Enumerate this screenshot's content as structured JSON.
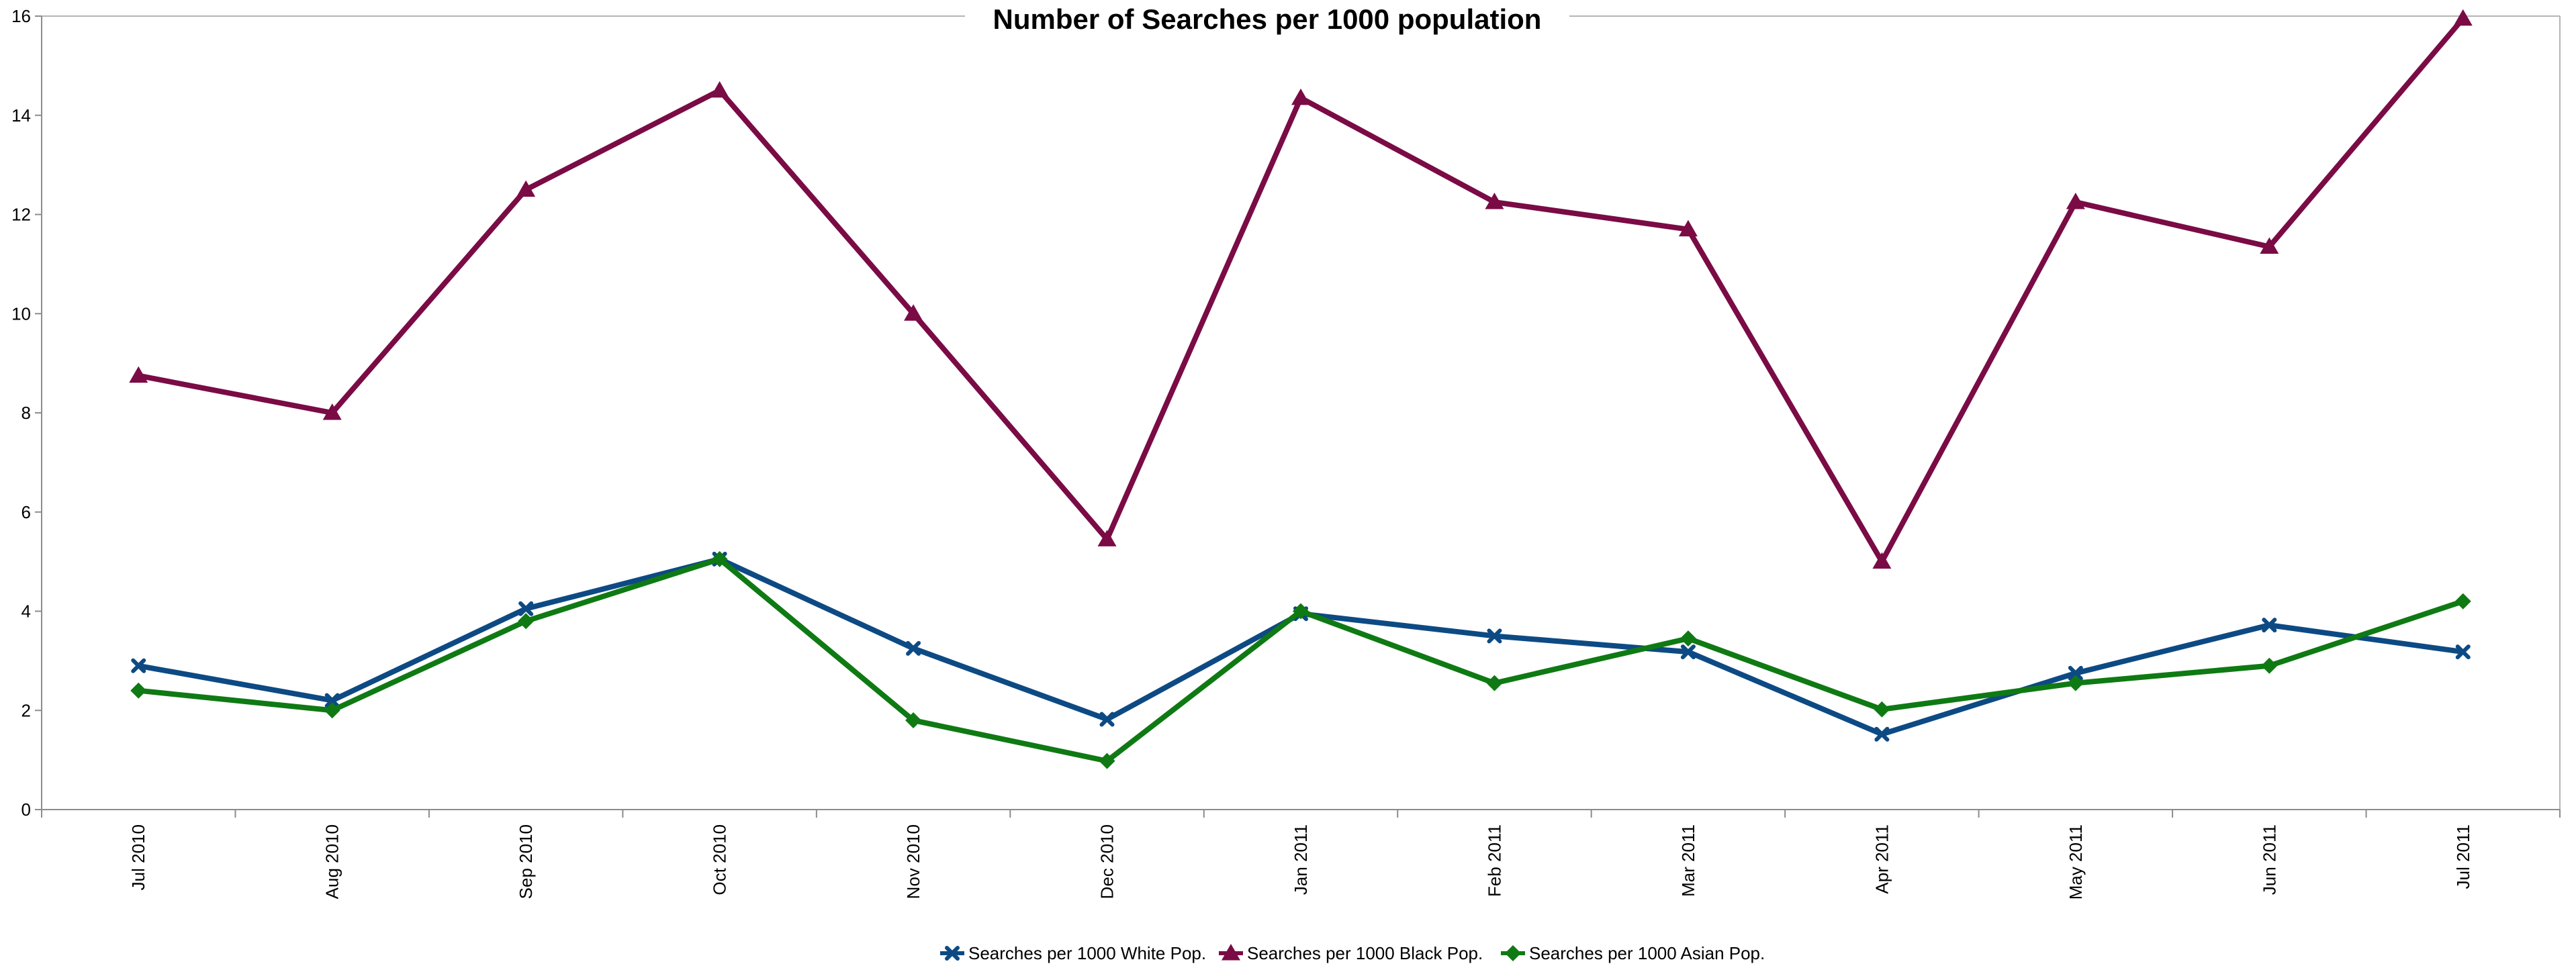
{
  "chart_data": {
    "type": "line",
    "title": "Number of Searches per 1000 population",
    "xlabel": "",
    "ylabel": "",
    "categories": [
      "Jul 2010",
      "Aug 2010",
      "Sep 2010",
      "Oct 2010",
      "Nov 2010",
      "Dec 2010",
      "Jan 2011",
      "Feb 2011",
      "Mar 2011",
      "Apr 2011",
      "May 2011",
      "Jun 2011",
      "Jul 2011"
    ],
    "ylim": [
      0,
      16
    ],
    "yticks": [
      "0",
      "2",
      "4",
      "6",
      "8",
      "10",
      "12",
      "14",
      "16"
    ],
    "grid": false,
    "legend_position": "bottom",
    "series": [
      {
        "name": "Searches per 1000 White Pop.",
        "color": "#0d4a84",
        "marker": "x-cross",
        "values": [
          2.9,
          2.2,
          4.05,
          5.05,
          3.25,
          1.82,
          3.95,
          3.5,
          3.18,
          1.52,
          2.75,
          3.72,
          3.18
        ]
      },
      {
        "name": "Searches per 1000  Black Pop.",
        "color": "#7a0b45",
        "marker": "triangle",
        "values": [
          8.75,
          8.0,
          12.5,
          14.5,
          10.0,
          5.45,
          14.35,
          12.25,
          11.7,
          5.0,
          12.25,
          11.35,
          15.95
        ]
      },
      {
        "name": "Searches per 1000 Asian Pop.",
        "color": "#0f7a13",
        "marker": "diamond",
        "values": [
          2.4,
          2.0,
          3.8,
          5.05,
          1.8,
          0.98,
          4.0,
          2.55,
          3.45,
          2.02,
          2.55,
          2.9,
          4.2
        ]
      }
    ]
  }
}
